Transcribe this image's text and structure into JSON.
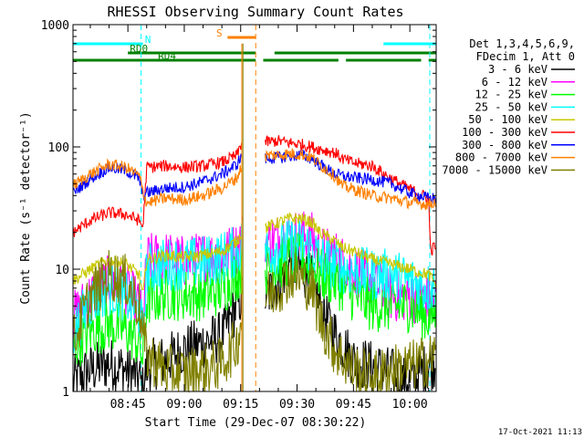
{
  "chart_data": {
    "type": "line",
    "title": "RHESSI Observing Summary Count Rates",
    "xlabel": "Start Time (29-Dec-07 08:30:22)",
    "ylabel": "Count Rate (s⁻¹ detector⁻¹)",
    "yscale": "log",
    "ylim": [
      1,
      1000
    ],
    "xlim_minutes_after_0830": [
      0.4,
      97
    ],
    "x_ticks": [
      {
        "t": 15,
        "label": "08:45"
      },
      {
        "t": 30,
        "label": "09:00"
      },
      {
        "t": 45,
        "label": "09:15"
      },
      {
        "t": 60,
        "label": "09:30"
      },
      {
        "t": 75,
        "label": "09:45"
      },
      {
        "t": 90,
        "label": "10:00"
      }
    ],
    "y_ticks": [
      {
        "v": 1,
        "label": "1"
      },
      {
        "v": 10,
        "label": "10"
      },
      {
        "v": 100,
        "label": "100"
      },
      {
        "v": 1000,
        "label": "1000"
      }
    ],
    "legend_header": [
      "Det 1,3,4,5,6,9,",
      "FDecim 1, Att 0"
    ],
    "legend_position": "right",
    "flag_bars": [
      {
        "label": "N",
        "color": "#00ffff",
        "segments": [
          [
            0.4,
            19
          ],
          [
            83,
            97
          ]
        ]
      },
      {
        "label": "S",
        "color": "#ff8000",
        "segments": [
          [
            41.5,
            49
          ]
        ]
      },
      {
        "label": "RD0",
        "color": "#008000",
        "segments": [
          [
            15,
            49
          ],
          [
            54,
            97
          ]
        ]
      },
      {
        "label": "RD4",
        "color": "#008000",
        "segments": [
          [
            0.4,
            49
          ],
          [
            51,
            71
          ],
          [
            73,
            93
          ],
          [
            95,
            97
          ]
        ]
      }
    ],
    "vertical_markers": [
      {
        "t": 18.5,
        "color": "#00ffff",
        "style": "dashed"
      },
      {
        "t": 49,
        "color": "#ff8000",
        "style": "dashed"
      },
      {
        "t": 95.3,
        "color": "#00ffff",
        "style": "dashed"
      }
    ],
    "gap": [
      45.5,
      51.5
    ],
    "series": [
      {
        "name": "3 - 6 keV",
        "color": "#000000",
        "points": [
          [
            0.4,
            1.2
          ],
          [
            5,
            1.5
          ],
          [
            10,
            1.7
          ],
          [
            14.5,
            1.5
          ],
          [
            18,
            1.3
          ],
          [
            19,
            1
          ],
          [
            20,
            1.6
          ],
          [
            25,
            1.8
          ],
          [
            30,
            2.2
          ],
          [
            35,
            2.5
          ],
          [
            40,
            2.8
          ],
          [
            44,
            5
          ],
          [
            45.3,
            6
          ],
          [
            52,
            6
          ],
          [
            55,
            8
          ],
          [
            58,
            11
          ],
          [
            61,
            10
          ],
          [
            64,
            8
          ],
          [
            66,
            5
          ],
          [
            70,
            3
          ],
          [
            75,
            1.8
          ],
          [
            80,
            1.6
          ],
          [
            85,
            1.4
          ],
          [
            90,
            1.2
          ],
          [
            95,
            1.6
          ],
          [
            97,
            1.8
          ]
        ]
      },
      {
        "name": "6 - 12 keV",
        "color": "#ff00ff",
        "points": [
          [
            0.4,
            4
          ],
          [
            5,
            6
          ],
          [
            10,
            8
          ],
          [
            14.5,
            7
          ],
          [
            18,
            5
          ],
          [
            19,
            3.3
          ],
          [
            20,
            12
          ],
          [
            25,
            12.5
          ],
          [
            30,
            11.5
          ],
          [
            35,
            12.5
          ],
          [
            40,
            13
          ],
          [
            44,
            15
          ],
          [
            45.3,
            18
          ],
          [
            52,
            17
          ],
          [
            55,
            18
          ],
          [
            58,
            19
          ],
          [
            61,
            19
          ],
          [
            64,
            18
          ],
          [
            66,
            14
          ],
          [
            70,
            13
          ],
          [
            73,
            11
          ],
          [
            75,
            10
          ],
          [
            80,
            8
          ],
          [
            85,
            6
          ],
          [
            90,
            6
          ],
          [
            95,
            5.5
          ],
          [
            97,
            5.8
          ]
        ]
      },
      {
        "name": "12 - 25 keV",
        "color": "#00ff00",
        "points": [
          [
            0.4,
            2.3
          ],
          [
            5,
            3.2
          ],
          [
            10,
            3.5
          ],
          [
            14.5,
            3.2
          ],
          [
            18,
            2.5
          ],
          [
            19,
            1.8
          ],
          [
            20,
            5.5
          ],
          [
            25,
            6.2
          ],
          [
            30,
            6.2
          ],
          [
            35,
            6.2
          ],
          [
            40,
            6.8
          ],
          [
            44,
            9
          ],
          [
            45.3,
            10
          ],
          [
            52,
            10
          ],
          [
            55,
            11
          ],
          [
            58,
            12
          ],
          [
            61,
            12
          ],
          [
            64,
            11
          ],
          [
            66,
            9
          ],
          [
            70,
            8
          ],
          [
            73,
            7
          ],
          [
            75,
            6
          ],
          [
            80,
            5
          ],
          [
            85,
            5
          ],
          [
            90,
            5
          ],
          [
            95,
            4
          ],
          [
            97,
            4.5
          ]
        ]
      },
      {
        "name": "25 - 50 keV",
        "color": "#00ffff",
        "points": [
          [
            0.4,
            3
          ],
          [
            5,
            5.5
          ],
          [
            10,
            7
          ],
          [
            14.5,
            6
          ],
          [
            18,
            4.5
          ],
          [
            19,
            3
          ],
          [
            20,
            10
          ],
          [
            25,
            11
          ],
          [
            30,
            11
          ],
          [
            35,
            11.5
          ],
          [
            40,
            12.5
          ],
          [
            44,
            14
          ],
          [
            45.3,
            16
          ],
          [
            52,
            14
          ],
          [
            55,
            15
          ],
          [
            58,
            16
          ],
          [
            61,
            16
          ],
          [
            64,
            15
          ],
          [
            66,
            12
          ],
          [
            70,
            11
          ],
          [
            73,
            10
          ],
          [
            75,
            9.5
          ],
          [
            80,
            9
          ],
          [
            85,
            9
          ],
          [
            90,
            8
          ],
          [
            95,
            7
          ],
          [
            97,
            7.5
          ]
        ]
      },
      {
        "name": "50 - 100 keV",
        "color": "#c8c800",
        "points": [
          [
            0.4,
            8
          ],
          [
            5,
            10
          ],
          [
            10,
            12
          ],
          [
            14.5,
            11
          ],
          [
            18,
            9
          ],
          [
            19,
            6
          ],
          [
            20,
            12
          ],
          [
            25,
            13
          ],
          [
            30,
            12.5
          ],
          [
            35,
            13
          ],
          [
            40,
            14
          ],
          [
            44,
            17
          ],
          [
            45.3,
            20
          ],
          [
            52,
            22
          ],
          [
            55,
            24
          ],
          [
            58,
            26
          ],
          [
            61,
            26
          ],
          [
            64,
            24
          ],
          [
            66,
            20
          ],
          [
            70,
            17
          ],
          [
            72,
            15
          ],
          [
            75,
            14
          ],
          [
            80,
            12
          ],
          [
            85,
            11
          ],
          [
            90,
            10
          ],
          [
            95,
            9
          ],
          [
            97,
            7.5
          ]
        ]
      },
      {
        "name": "100 - 300 keV",
        "color": "#ff0000",
        "points": [
          [
            0.4,
            20
          ],
          [
            5,
            25
          ],
          [
            10,
            29
          ],
          [
            14.5,
            28
          ],
          [
            18,
            25
          ],
          [
            19,
            22
          ],
          [
            20,
            68
          ],
          [
            25,
            70
          ],
          [
            30,
            68
          ],
          [
            35,
            70
          ],
          [
            40,
            75
          ],
          [
            44,
            85
          ],
          [
            45.3,
            110
          ],
          [
            52,
            110
          ],
          [
            55,
            112
          ],
          [
            58,
            108
          ],
          [
            61,
            105
          ],
          [
            64,
            100
          ],
          [
            66,
            96
          ],
          [
            70,
            90
          ],
          [
            72,
            80
          ],
          [
            75,
            74
          ],
          [
            80,
            70
          ],
          [
            85,
            55
          ],
          [
            90,
            45
          ],
          [
            95,
            38
          ],
          [
            95.5,
            14
          ],
          [
            97,
            16
          ]
        ]
      },
      {
        "name": "300 - 800 keV",
        "color": "#0000ff",
        "points": [
          [
            0.4,
            42
          ],
          [
            5,
            55
          ],
          [
            10,
            68
          ],
          [
            14.5,
            64
          ],
          [
            18,
            55
          ],
          [
            19,
            40
          ],
          [
            20,
            42
          ],
          [
            25,
            46
          ],
          [
            30,
            47
          ],
          [
            35,
            52
          ],
          [
            40,
            60
          ],
          [
            44,
            72
          ],
          [
            45.3,
            85
          ],
          [
            52,
            80
          ],
          [
            55,
            82
          ],
          [
            58,
            84
          ],
          [
            61,
            86
          ],
          [
            64,
            80
          ],
          [
            66,
            72
          ],
          [
            70,
            60
          ],
          [
            72,
            58
          ],
          [
            75,
            56
          ],
          [
            80,
            54
          ],
          [
            85,
            50
          ],
          [
            90,
            42
          ],
          [
            95,
            38
          ],
          [
            97,
            38
          ]
        ]
      },
      {
        "name": "800 - 7000 keV",
        "color": "#ff8000",
        "points": [
          [
            0.4,
            48
          ],
          [
            5,
            60
          ],
          [
            10,
            72
          ],
          [
            14.5,
            68
          ],
          [
            18,
            58
          ],
          [
            19,
            44
          ],
          [
            20,
            35
          ],
          [
            25,
            38
          ],
          [
            30,
            37
          ],
          [
            35,
            40
          ],
          [
            40,
            46
          ],
          [
            44,
            56
          ],
          [
            45.3,
            70
          ],
          [
            52,
            85
          ],
          [
            55,
            86
          ],
          [
            58,
            88
          ],
          [
            61,
            87
          ],
          [
            64,
            82
          ],
          [
            66,
            72
          ],
          [
            70,
            58
          ],
          [
            72,
            48
          ],
          [
            75,
            45
          ],
          [
            80,
            40
          ],
          [
            85,
            38
          ],
          [
            90,
            35
          ],
          [
            95,
            34
          ],
          [
            97,
            36
          ]
        ]
      },
      {
        "name": "7000 - 15000 keV",
        "color": "#808000",
        "points": [
          [
            0.4,
            2.5
          ],
          [
            5,
            6
          ],
          [
            10,
            9
          ],
          [
            14.5,
            8
          ],
          [
            18,
            5
          ],
          [
            19,
            3
          ],
          [
            20,
            2
          ],
          [
            25,
            1.5
          ],
          [
            30,
            1.4
          ],
          [
            35,
            1.5
          ],
          [
            40,
            1.7
          ],
          [
            44,
            2.5
          ],
          [
            45.3,
            4
          ],
          [
            52,
            6
          ],
          [
            55,
            7
          ],
          [
            58,
            9
          ],
          [
            61,
            8.5
          ],
          [
            64,
            7
          ],
          [
            66,
            4
          ],
          [
            70,
            2.2
          ],
          [
            75,
            1.5
          ],
          [
            80,
            1.3
          ],
          [
            85,
            1.5
          ],
          [
            90,
            1.6
          ],
          [
            95,
            1.8
          ],
          [
            97,
            2
          ]
        ]
      }
    ]
  },
  "footer_timestamp": "17-Oct-2021 11:13"
}
